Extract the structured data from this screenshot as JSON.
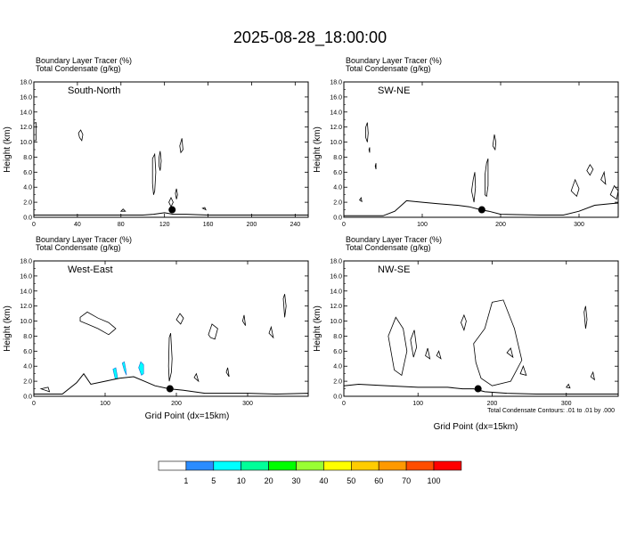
{
  "title": "2025-08-28_18:00:00",
  "footnote": "Total Condensate Contours: .01 to .01 by .000",
  "y_axis_label": "Height (km)",
  "x_axis_label": "Grid Point (dx=15km)",
  "legend": {
    "labels": [
      "1",
      "5",
      "10",
      "20",
      "30",
      "40",
      "50",
      "60",
      "70",
      "100"
    ],
    "colors": [
      "#ffffff",
      "#2b8cff",
      "#00ffff",
      "#00ff99",
      "#00ff00",
      "#99ff33",
      "#ffff00",
      "#ffcc00",
      "#ff9900",
      "#ff4d00",
      "#ff0000"
    ]
  },
  "chart_data": [
    {
      "type": "heatmap",
      "line1": "Boundary Layer Tracer   (%)",
      "line2": "Total Condensate   (g/kg)",
      "label": "South-North",
      "xlim": [
        0,
        252
      ],
      "ylim": [
        0,
        18
      ],
      "xticks": [
        0,
        40,
        80,
        120,
        160,
        200,
        240
      ],
      "yticks": [
        "0.0",
        "2.0",
        "4.0",
        "6.0",
        "8.0",
        "10.0",
        "12.0",
        "14.0",
        "16.0",
        "18.0"
      ],
      "grid": false,
      "marker": [
        127,
        1.0
      ],
      "terrain": [
        [
          0,
          0.3
        ],
        [
          40,
          0.3
        ],
        [
          80,
          0.3
        ],
        [
          100,
          0.3
        ],
        [
          110,
          0.4
        ],
        [
          120,
          0.6
        ],
        [
          128,
          0.4
        ],
        [
          140,
          0.4
        ],
        [
          160,
          0.3
        ],
        [
          200,
          0.3
        ],
        [
          252,
          0.3
        ]
      ],
      "contours": [
        [
          [
            0,
            12.5
          ],
          [
            2,
            12.6
          ],
          [
            2,
            10.2
          ],
          [
            0,
            10.2
          ]
        ],
        [
          [
            41,
            11.2
          ],
          [
            43,
            11.6
          ],
          [
            45,
            11.0
          ],
          [
            44,
            10.2
          ],
          [
            42,
            10.6
          ]
        ],
        [
          [
            109,
            7.8
          ],
          [
            111,
            8.4
          ],
          [
            112,
            6.0
          ],
          [
            111,
            3.5
          ],
          [
            110,
            3.0
          ],
          [
            109,
            4.5
          ]
        ],
        [
          [
            115,
            8.0
          ],
          [
            116,
            8.8
          ],
          [
            117,
            7.5
          ],
          [
            116,
            6.2
          ],
          [
            115,
            6.8
          ]
        ],
        [
          [
            130,
            3.2
          ],
          [
            131,
            3.8
          ],
          [
            132,
            3.0
          ],
          [
            131,
            2.4
          ]
        ],
        [
          [
            134,
            9.5
          ],
          [
            136,
            10.5
          ],
          [
            137,
            9.0
          ],
          [
            135,
            8.6
          ]
        ],
        [
          [
            124,
            2.0
          ],
          [
            126,
            2.6
          ],
          [
            128,
            2.0
          ],
          [
            126,
            1.4
          ]
        ],
        [
          [
            80,
            0.8
          ],
          [
            82,
            1.1
          ],
          [
            84,
            0.8
          ]
        ],
        [
          [
            155,
            1.2
          ],
          [
            157,
            1.3
          ],
          [
            158,
            1.0
          ]
        ]
      ],
      "shaded": []
    },
    {
      "type": "heatmap",
      "line1": "Boundary Layer Tracer   (%)",
      "line2": "Total Condensate   (g/kg)",
      "label": "SW-NE",
      "xlim": [
        0,
        350
      ],
      "ylim": [
        0,
        18
      ],
      "xticks": [
        0,
        100,
        200,
        300
      ],
      "yticks": [
        "0.0",
        "2.0",
        "4.0",
        "6.0",
        "8.0",
        "10.0",
        "12.0",
        "14.0",
        "16.0",
        "18.0"
      ],
      "grid": false,
      "marker": [
        176,
        1.0
      ],
      "terrain": [
        [
          0,
          0.2
        ],
        [
          50,
          0.2
        ],
        [
          65,
          0.8
        ],
        [
          80,
          2.2
        ],
        [
          100,
          2.0
        ],
        [
          120,
          1.8
        ],
        [
          145,
          1.6
        ],
        [
          160,
          1.4
        ],
        [
          175,
          1.0
        ],
        [
          185,
          0.8
        ],
        [
          200,
          0.4
        ],
        [
          250,
          0.3
        ],
        [
          280,
          0.3
        ],
        [
          300,
          0.8
        ],
        [
          320,
          1.6
        ],
        [
          340,
          1.8
        ],
        [
          350,
          1.9
        ]
      ],
      "contours": [
        [
          [
            28,
            12.0
          ],
          [
            30,
            12.6
          ],
          [
            31,
            11.2
          ],
          [
            30,
            10.0
          ],
          [
            28,
            10.6
          ]
        ],
        [
          [
            32,
            9.0
          ],
          [
            33,
            9.3
          ],
          [
            33,
            8.6
          ]
        ],
        [
          [
            40,
            6.8
          ],
          [
            41,
            7.2
          ],
          [
            41,
            6.4
          ]
        ],
        [
          [
            20,
            2.3
          ],
          [
            22,
            2.6
          ],
          [
            23,
            2.1
          ]
        ],
        [
          [
            163,
            3.5
          ],
          [
            165,
            5.0
          ],
          [
            167,
            6.0
          ],
          [
            168,
            4.0
          ],
          [
            166,
            2.0
          ]
        ],
        [
          [
            180,
            5.6
          ],
          [
            182,
            7.2
          ],
          [
            184,
            7.8
          ],
          [
            184,
            4.2
          ],
          [
            182,
            2.8
          ],
          [
            180,
            3.0
          ]
        ],
        [
          [
            190,
            9.5
          ],
          [
            192,
            11.0
          ],
          [
            194,
            10.0
          ],
          [
            193,
            9.0
          ]
        ],
        [
          [
            290,
            3.5
          ],
          [
            295,
            5.0
          ],
          [
            300,
            3.8
          ],
          [
            297,
            2.8
          ]
        ],
        [
          [
            310,
            6.2
          ],
          [
            314,
            7.0
          ],
          [
            318,
            6.4
          ],
          [
            314,
            5.6
          ]
        ],
        [
          [
            328,
            5.0
          ],
          [
            332,
            6.0
          ],
          [
            334,
            4.4
          ]
        ],
        [
          [
            340,
            3.0
          ],
          [
            345,
            4.2
          ],
          [
            350,
            3.5
          ],
          [
            348,
            2.4
          ]
        ]
      ],
      "shaded": []
    },
    {
      "type": "heatmap",
      "line1": "Boundary Layer Tracer   (%)",
      "line2": "Total Condensate   (g/kg)",
      "label": "West-East",
      "xlim": [
        0,
        385
      ],
      "ylim": [
        0,
        18
      ],
      "xticks": [
        0,
        100,
        200,
        300
      ],
      "yticks": [
        "0.0",
        "2.0",
        "4.0",
        "6.0",
        "8.0",
        "10.0",
        "12.0",
        "14.0",
        "16.0",
        "18.0"
      ],
      "grid": false,
      "marker": [
        191,
        1.0
      ],
      "terrain": [
        [
          0,
          0.3
        ],
        [
          40,
          0.3
        ],
        [
          60,
          1.8
        ],
        [
          70,
          3.0
        ],
        [
          80,
          1.6
        ],
        [
          100,
          2.0
        ],
        [
          120,
          2.4
        ],
        [
          140,
          2.6
        ],
        [
          155,
          2.0
        ],
        [
          170,
          1.4
        ],
        [
          190,
          1.0
        ],
        [
          210,
          0.8
        ],
        [
          240,
          0.4
        ],
        [
          300,
          0.4
        ],
        [
          340,
          0.3
        ],
        [
          385,
          0.4
        ]
      ],
      "contours": [
        [
          [
            65,
            10.5
          ],
          [
            75,
            11.2
          ],
          [
            90,
            10.4
          ],
          [
            105,
            9.8
          ],
          [
            115,
            9.0
          ],
          [
            105,
            8.2
          ],
          [
            90,
            9.0
          ],
          [
            75,
            9.6
          ],
          [
            65,
            10.0
          ]
        ],
        [
          [
            200,
            10.2
          ],
          [
            205,
            11.0
          ],
          [
            210,
            10.4
          ],
          [
            206,
            9.6
          ]
        ],
        [
          [
            245,
            8.2
          ],
          [
            250,
            9.6
          ],
          [
            258,
            9.0
          ],
          [
            254,
            7.6
          ],
          [
            248,
            7.8
          ]
        ],
        [
          [
            190,
            7.8
          ],
          [
            192,
            8.4
          ],
          [
            194,
            5.0
          ],
          [
            193,
            3.2
          ],
          [
            190,
            2.0
          ],
          [
            189,
            4.0
          ]
        ],
        [
          [
            293,
            10.0
          ],
          [
            295,
            10.8
          ],
          [
            297,
            9.4
          ]
        ],
        [
          [
            350,
            13.0
          ],
          [
            352,
            13.6
          ],
          [
            354,
            12.0
          ],
          [
            352,
            10.5
          ]
        ],
        [
          [
            330,
            8.4
          ],
          [
            333,
            9.2
          ],
          [
            336,
            7.8
          ]
        ],
        [
          [
            225,
            2.5
          ],
          [
            228,
            3.0
          ],
          [
            231,
            2.0
          ]
        ],
        [
          [
            270,
            3.2
          ],
          [
            272,
            3.8
          ],
          [
            274,
            2.6
          ]
        ],
        [
          [
            10,
            1.0
          ],
          [
            20,
            1.2
          ],
          [
            22,
            0.6
          ]
        ]
      ],
      "shaded": [
        {
          "pct": 5,
          "poly": [
            [
              111,
              3.6
            ],
            [
              114,
              2.4
            ],
            [
              118,
              2.0
            ],
            [
              117,
              2.8
            ],
            [
              115,
              3.8
            ]
          ]
        },
        {
          "pct": 5,
          "poly": [
            [
              124,
              4.4
            ],
            [
              127,
              3.4
            ],
            [
              130,
              2.8
            ],
            [
              129,
              3.6
            ],
            [
              127,
              4.6
            ]
          ]
        },
        {
          "pct": 5,
          "poly": [
            [
              150,
              4.6
            ],
            [
              154,
              4.2
            ],
            [
              154,
              3.0
            ],
            [
              151,
              2.8
            ],
            [
              147,
              3.8
            ]
          ]
        }
      ]
    },
    {
      "type": "heatmap",
      "line1": "Boundary Layer Tracer   (%)",
      "line2": "Total Condensate   (g/kg)",
      "label": "NW-SE",
      "xlim": [
        0,
        370
      ],
      "ylim": [
        0,
        18
      ],
      "xticks": [
        0,
        100,
        200,
        300
      ],
      "yticks": [
        "0.0",
        "2.0",
        "4.0",
        "6.0",
        "8.0",
        "10.0",
        "12.0",
        "14.0",
        "16.0",
        "18.0"
      ],
      "grid": false,
      "marker": [
        181,
        1.0
      ],
      "terrain": [
        [
          0,
          1.4
        ],
        [
          20,
          1.6
        ],
        [
          60,
          1.4
        ],
        [
          100,
          1.2
        ],
        [
          140,
          1.2
        ],
        [
          160,
          1.0
        ],
        [
          175,
          1.0
        ],
        [
          190,
          0.6
        ],
        [
          220,
          0.4
        ],
        [
          260,
          0.3
        ],
        [
          300,
          0.3
        ],
        [
          370,
          0.3
        ]
      ],
      "contours": [
        [
          [
            60,
            8.0
          ],
          [
            70,
            10.5
          ],
          [
            80,
            9.0
          ],
          [
            85,
            6.0
          ],
          [
            78,
            2.8
          ],
          [
            68,
            3.5
          ]
        ],
        [
          [
            90,
            7.5
          ],
          [
            95,
            8.8
          ],
          [
            98,
            6.5
          ],
          [
            94,
            5.2
          ]
        ],
        [
          [
            110,
            5.4
          ],
          [
            113,
            6.4
          ],
          [
            116,
            5.0
          ]
        ],
        [
          [
            125,
            5.4
          ],
          [
            128,
            6.0
          ],
          [
            131,
            5.0
          ]
        ],
        [
          [
            158,
            9.8
          ],
          [
            162,
            10.8
          ],
          [
            165,
            10.0
          ],
          [
            162,
            8.8
          ]
        ],
        [
          [
            175,
            7.0
          ],
          [
            190,
            9.0
          ],
          [
            200,
            12.5
          ],
          [
            215,
            12.8
          ],
          [
            230,
            9.0
          ],
          [
            240,
            4.8
          ],
          [
            225,
            2.0
          ],
          [
            200,
            1.4
          ],
          [
            185,
            2.4
          ],
          [
            178,
            4.5
          ]
        ],
        [
          [
            220,
            5.8
          ],
          [
            225,
            6.4
          ],
          [
            228,
            5.2
          ]
        ],
        [
          [
            238,
            3.0
          ],
          [
            242,
            4.0
          ],
          [
            246,
            2.8
          ]
        ],
        [
          [
            324,
            11.2
          ],
          [
            326,
            12.0
          ],
          [
            328,
            10.2
          ],
          [
            326,
            9.0
          ]
        ],
        [
          [
            333,
            2.6
          ],
          [
            336,
            3.2
          ],
          [
            338,
            2.2
          ]
        ],
        [
          [
            300,
            1.2
          ],
          [
            303,
            1.6
          ],
          [
            305,
            1.1
          ]
        ]
      ],
      "shaded": []
    }
  ]
}
